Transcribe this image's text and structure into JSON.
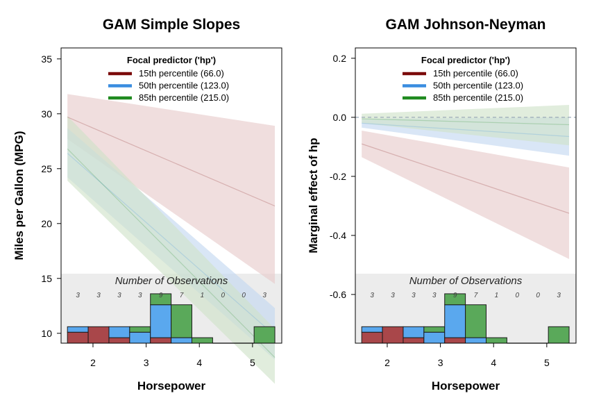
{
  "chart_data": [
    {
      "type": "line",
      "title": "GAM Simple Slopes",
      "xlabel": "Horsepower",
      "ylabel": "Miles per Gallon (MPG)",
      "xlim": [
        1.4,
        5.55
      ],
      "ylim": [
        9.1,
        36.0
      ],
      "xticks": [
        2,
        3,
        4,
        5
      ],
      "yticks": [
        10,
        15,
        20,
        25,
        30,
        35
      ],
      "grid": false,
      "legend": {
        "title": "Focal predictor ('hp')",
        "position": "top-center",
        "entries": [
          "15th percentile (66.0)",
          "50th percentile (123.0)",
          "85th percentile (215.0)"
        ]
      },
      "x_range": [
        1.52,
        5.42
      ],
      "series": [
        {
          "name": "15th percentile (66.0)",
          "color": "#7b0a0a",
          "fill": "#e6c9c9",
          "y": [
            29.7,
            21.6
          ],
          "lower": [
            27.7,
            14.5
          ],
          "upper": [
            31.8,
            28.9
          ]
        },
        {
          "name": "50th percentile (123.0)",
          "color": "#3a8de0",
          "fill": "#c2d6f0",
          "y": [
            26.4,
            9.8
          ],
          "lower": [
            24.2,
            7.6
          ],
          "upper": [
            28.7,
            12.3
          ]
        },
        {
          "name": "85th percentile (215.0)",
          "color": "#1f8a1f",
          "fill": "#cfe2c8",
          "y": [
            26.8,
            7.8
          ],
          "lower": [
            23.9,
            5.4
          ],
          "upper": [
            29.8,
            10.4
          ]
        }
      ],
      "reference_line": null,
      "observations": {
        "title": "Number of Observations",
        "bins": [
          {
            "x0": 1.52,
            "x1": 1.91,
            "total": 3,
            "segments": [
              {
                "group": 0,
                "count": 2
              },
              {
                "group": 1,
                "count": 1
              }
            ]
          },
          {
            "x0": 1.91,
            "x1": 2.3,
            "total": 3,
            "segments": [
              {
                "group": 0,
                "count": 3
              }
            ]
          },
          {
            "x0": 2.3,
            "x1": 2.69,
            "total": 3,
            "segments": [
              {
                "group": 0,
                "count": 1
              },
              {
                "group": 1,
                "count": 2
              }
            ]
          },
          {
            "x0": 2.69,
            "x1": 3.08,
            "total": 3,
            "segments": [
              {
                "group": 1,
                "count": 2
              },
              {
                "group": 2,
                "count": 1
              }
            ]
          },
          {
            "x0": 3.08,
            "x1": 3.47,
            "total": 9,
            "segments": [
              {
                "group": 0,
                "count": 1
              },
              {
                "group": 1,
                "count": 6
              },
              {
                "group": 2,
                "count": 2
              }
            ]
          },
          {
            "x0": 3.47,
            "x1": 3.86,
            "total": 7,
            "segments": [
              {
                "group": 1,
                "count": 1
              },
              {
                "group": 2,
                "count": 6
              }
            ]
          },
          {
            "x0": 3.86,
            "x1": 4.25,
            "total": 1,
            "segments": [
              {
                "group": 2,
                "count": 1
              }
            ]
          },
          {
            "x0": 4.25,
            "x1": 4.64,
            "total": 0,
            "segments": []
          },
          {
            "x0": 4.64,
            "x1": 5.03,
            "total": 0,
            "segments": []
          },
          {
            "x0": 5.03,
            "x1": 5.42,
            "total": 3,
            "segments": [
              {
                "group": 2,
                "count": 3
              }
            ]
          }
        ]
      }
    },
    {
      "type": "line",
      "title": "GAM Johnson-Neyman",
      "xlabel": "Horsepower",
      "ylabel": "Marginal effect of hp",
      "xlim": [
        1.4,
        5.55
      ],
      "ylim": [
        -0.765,
        0.235
      ],
      "xticks": [
        2,
        3,
        4,
        5
      ],
      "yticks": [
        0.2,
        0.0,
        -0.2,
        -0.4,
        -0.6
      ],
      "ytick_labels": [
        "0.2",
        "0.0",
        "-0.2",
        "-0.4",
        "-0.6"
      ],
      "grid": false,
      "legend": {
        "title": "Focal predictor ('hp')",
        "position": "top-center",
        "entries": [
          "15th percentile (66.0)",
          "50th percentile (123.0)",
          "85th percentile (215.0)"
        ]
      },
      "x_range": [
        1.52,
        5.42
      ],
      "series": [
        {
          "name": "15th percentile (66.0)",
          "color": "#7b0a0a",
          "fill": "#e6c9c9",
          "y": [
            -0.09,
            -0.325
          ],
          "lower": [
            -0.135,
            -0.48
          ],
          "upper": [
            -0.045,
            -0.17
          ]
        },
        {
          "name": "50th percentile (123.0)",
          "color": "#3a8de0",
          "fill": "#c2d6f0",
          "y": [
            -0.02,
            -0.065
          ],
          "lower": [
            -0.035,
            -0.13
          ],
          "upper": [
            -0.005,
            0.0
          ]
        },
        {
          "name": "85th percentile (215.0)",
          "color": "#1f8a1f",
          "fill": "#cfe2c8",
          "y": [
            -0.005,
            -0.025
          ],
          "lower": [
            -0.02,
            -0.095
          ],
          "upper": [
            0.012,
            0.042
          ]
        }
      ],
      "reference_line": {
        "y": 0.0,
        "color": "#9aaab8",
        "style": "dashed"
      },
      "observations": {
        "title": "Number of Observations",
        "bins": [
          {
            "x0": 1.52,
            "x1": 1.91,
            "total": 3,
            "segments": [
              {
                "group": 0,
                "count": 2
              },
              {
                "group": 1,
                "count": 1
              }
            ]
          },
          {
            "x0": 1.91,
            "x1": 2.3,
            "total": 3,
            "segments": [
              {
                "group": 0,
                "count": 3
              }
            ]
          },
          {
            "x0": 2.3,
            "x1": 2.69,
            "total": 3,
            "segments": [
              {
                "group": 0,
                "count": 1
              },
              {
                "group": 1,
                "count": 2
              }
            ]
          },
          {
            "x0": 2.69,
            "x1": 3.08,
            "total": 3,
            "segments": [
              {
                "group": 1,
                "count": 2
              },
              {
                "group": 2,
                "count": 1
              }
            ]
          },
          {
            "x0": 3.08,
            "x1": 3.47,
            "total": 9,
            "segments": [
              {
                "group": 0,
                "count": 1
              },
              {
                "group": 1,
                "count": 6
              },
              {
                "group": 2,
                "count": 2
              }
            ]
          },
          {
            "x0": 3.47,
            "x1": 3.86,
            "total": 7,
            "segments": [
              {
                "group": 1,
                "count": 1
              },
              {
                "group": 2,
                "count": 6
              }
            ]
          },
          {
            "x0": 3.86,
            "x1": 4.25,
            "total": 1,
            "segments": [
              {
                "group": 2,
                "count": 1
              }
            ]
          },
          {
            "x0": 4.25,
            "x1": 4.64,
            "total": 0,
            "segments": []
          },
          {
            "x0": 4.64,
            "x1": 5.03,
            "total": 0,
            "segments": []
          },
          {
            "x0": 5.03,
            "x1": 5.42,
            "total": 3,
            "segments": [
              {
                "group": 2,
                "count": 3
              }
            ]
          }
        ]
      }
    }
  ],
  "colors": {
    "hist_fills": [
      "#a9474a",
      "#5aa8ee",
      "#5aa95a"
    ],
    "hist_panel": "#ececec"
  }
}
